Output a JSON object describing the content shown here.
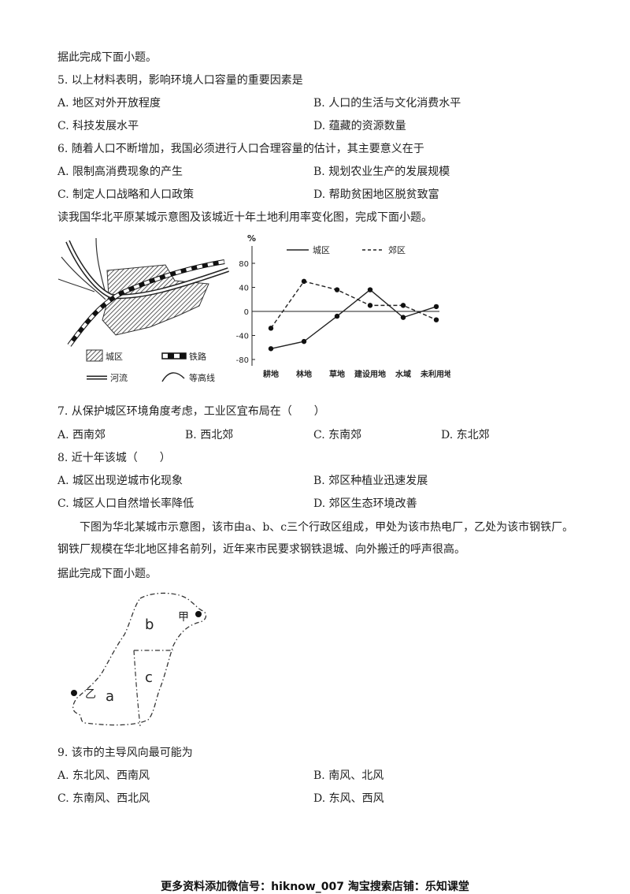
{
  "intro1": "据此完成下面小题。",
  "q5": {
    "stem": "5. 以上材料表明，影响环境人口容量的重要因素是",
    "options": [
      "A. 地区对外开放程度",
      "B. 人口的生活与文化消费水平",
      "C. 科技发展水平",
      "D. 蕴藏的资源数量"
    ]
  },
  "q6": {
    "stem": "6. 随着人口不断增加，我国必须进行人口合理容量的估计，其主要意义在于",
    "options": [
      "A. 限制高消费现象的产生",
      "B. 规划农业生产的发展规模",
      "C. 制定人口战略和人口政策",
      "D. 帮助贫困地区脱贫致富"
    ]
  },
  "intro2": "读我国华北平原某城示意图及该城近十年土地利用率变化图，完成下面小题。",
  "map1": {
    "legend": [
      "城区",
      "铁路",
      "河流",
      "等高线"
    ]
  },
  "chart_data": {
    "type": "line",
    "ylabel": "%",
    "categories": [
      "耕地",
      "林地",
      "草地",
      "建设用地",
      "水域",
      "未利用地"
    ],
    "series": [
      {
        "name": "城区",
        "style": "solid",
        "values": [
          -62,
          -50,
          -8,
          36,
          -10,
          8
        ]
      },
      {
        "name": "郊区",
        "style": "dashed",
        "values": [
          -28,
          50,
          36,
          10,
          10,
          -14
        ]
      }
    ],
    "yticks": [
      "80",
      "40",
      "0",
      "-40",
      "-80"
    ],
    "ylim": [
      -80,
      80
    ]
  },
  "q7": {
    "stem": "7. 从保护城区环境角度考虑，工业区宜布局在（　　）",
    "options": [
      "A. 西南郊",
      "B. 西北郊",
      "C. 东南郊",
      "D. 东北郊"
    ]
  },
  "q8": {
    "stem": "8. 近十年该城（　　）",
    "options": [
      "A. 城区出现逆城市化现象",
      "B. 郊区种植业迅速发展",
      "C. 城区人口自然增长率降低",
      "D. 郊区生态环境改善"
    ]
  },
  "passage": "下图为华北某城市示意图，该市由a、b、c三个行政区组成，甲处为该市热电厂，乙处为该市钢铁厂。钢铁厂规模在华北地区排名前列，近年来市民要求钢铁退城、向外搬迁的呼声很高。",
  "intro3": "据此完成下面小题。",
  "map2": {
    "labels": [
      "b",
      "甲",
      "c",
      "乙",
      "a"
    ]
  },
  "q9": {
    "stem": "9. 该市的主导风向最可能为",
    "options": [
      "A. 东北风、西南风",
      "B. 南风、北风",
      "C. 东南风、西北风",
      "D. 东风、西风"
    ]
  },
  "footer": "更多资料添加微信号：hiknow_007 淘宝搜索店铺：乐知课堂"
}
